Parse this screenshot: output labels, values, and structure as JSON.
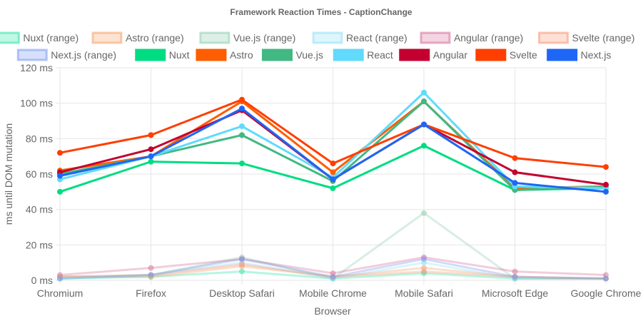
{
  "chart_data": {
    "type": "line",
    "title": "Framework Reaction Times - CaptionChange",
    "xlabel": "Browser",
    "ylabel": "ms until DOM mutation",
    "ylim": [
      0,
      120
    ],
    "yticks": [
      0,
      20,
      40,
      60,
      80,
      100,
      120
    ],
    "ytick_labels": [
      "0 ms",
      "20 ms",
      "40 ms",
      "60 ms",
      "80 ms",
      "100 ms",
      "120 ms"
    ],
    "categories": [
      "Chromium",
      "Firefox",
      "Desktop Safari",
      "Mobile Chrome",
      "Mobile Safari",
      "Microsoft Edge",
      "Google Chrome"
    ],
    "legend_position": "top",
    "grid": true,
    "series": [
      {
        "name": "Nuxt (range)",
        "kind": "range",
        "color": "#2ee6a8",
        "values": [
          1,
          2,
          5,
          1,
          4,
          1,
          1
        ]
      },
      {
        "name": "Astro (range)",
        "kind": "range",
        "color": "#f6a26b",
        "values": [
          2,
          2,
          8,
          2,
          7,
          2,
          1
        ]
      },
      {
        "name": "Vue.js (range)",
        "kind": "range",
        "color": "#8fcdb0",
        "values": [
          2,
          3,
          13,
          1,
          38,
          1,
          1
        ]
      },
      {
        "name": "React (range)",
        "kind": "range",
        "color": "#8fe0f5",
        "values": [
          1,
          3,
          10,
          1,
          10,
          1,
          1
        ]
      },
      {
        "name": "Angular (range)",
        "kind": "range",
        "color": "#d6709a",
        "values": [
          3,
          7,
          12,
          4,
          13,
          5,
          3
        ]
      },
      {
        "name": "Svelte (range)",
        "kind": "range",
        "color": "#f79878",
        "values": [
          2,
          3,
          9,
          2,
          5,
          2,
          1
        ]
      },
      {
        "name": "Next.js (range)",
        "kind": "range",
        "color": "#7a99f2",
        "values": [
          1,
          3,
          12,
          2,
          12,
          2,
          1
        ]
      },
      {
        "name": "Nuxt",
        "kind": "line",
        "color": "#00dc82",
        "values": [
          50,
          67,
          66,
          52,
          76,
          51,
          52
        ]
      },
      {
        "name": "Astro",
        "kind": "line",
        "color": "#ff5d01",
        "values": [
          62,
          70,
          101,
          61,
          101,
          52,
          53
        ]
      },
      {
        "name": "Vue.js",
        "kind": "line",
        "color": "#42b883",
        "values": [
          60,
          70,
          82,
          56,
          101,
          51,
          53
        ]
      },
      {
        "name": "React",
        "kind": "line",
        "color": "#61dafb",
        "values": [
          57,
          70,
          87,
          58,
          106,
          53,
          52
        ]
      },
      {
        "name": "Angular",
        "kind": "line",
        "color": "#c3002f",
        "values": [
          61,
          74,
          96,
          57,
          88,
          61,
          54
        ]
      },
      {
        "name": "Svelte",
        "kind": "line",
        "color": "#ff3e00",
        "values": [
          72,
          82,
          102,
          66,
          88,
          69,
          64
        ]
      },
      {
        "name": "Next.js",
        "kind": "line",
        "color": "#1e66f5",
        "values": [
          59,
          70,
          97,
          57,
          88,
          55,
          50
        ]
      }
    ]
  }
}
